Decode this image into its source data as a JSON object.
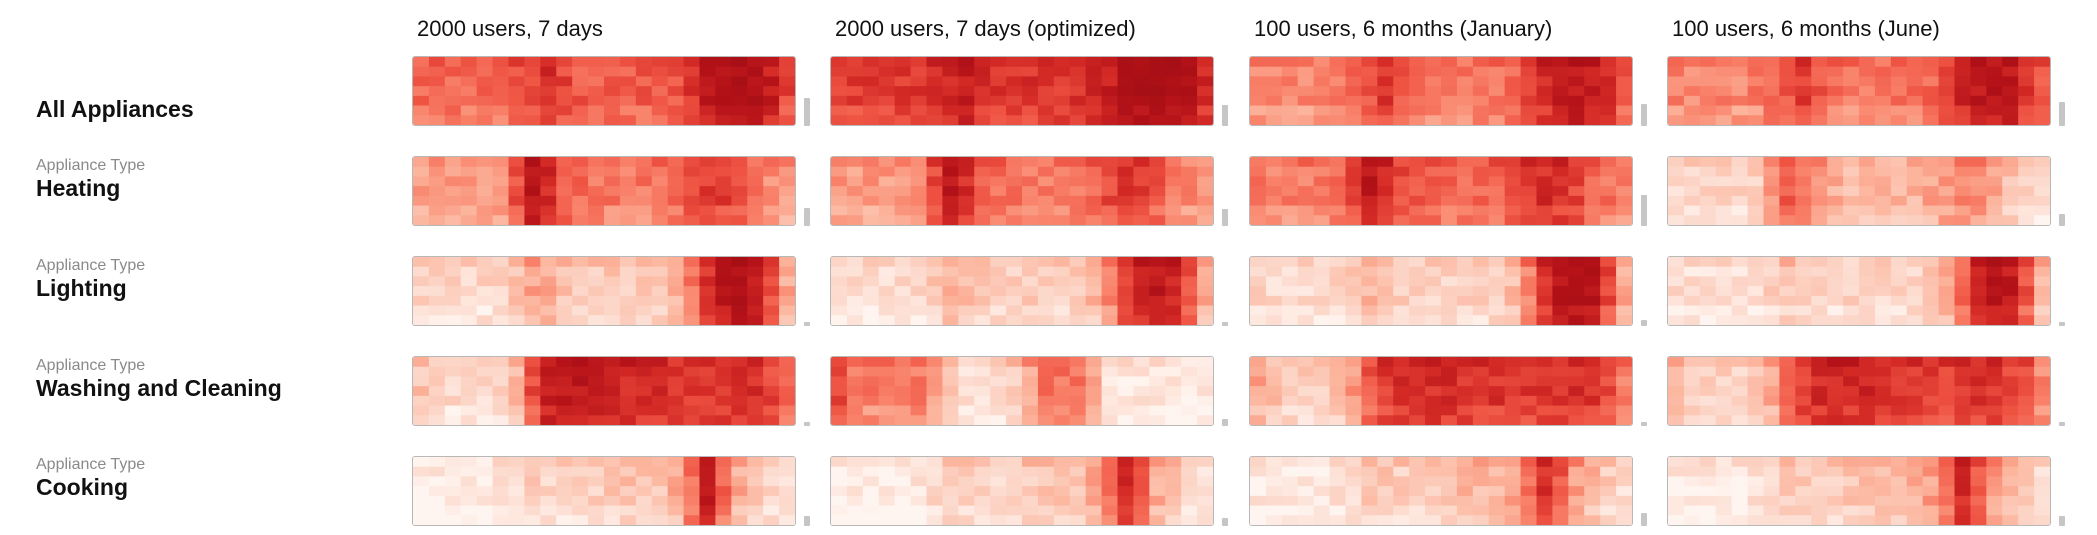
{
  "chart_data": {
    "type": "heatmap",
    "columns": [
      "2000 users, 7 days",
      "2000 users, 7 days (optimized)",
      "100 users, 6 months (January)",
      "100 users, 6 months (June)"
    ],
    "rows": [
      {
        "subtitle": "",
        "name": "All Appliances"
      },
      {
        "subtitle": "Appliance Type",
        "name": "Heating"
      },
      {
        "subtitle": "Appliance Type",
        "name": "Lighting"
      },
      {
        "subtitle": "Appliance Type",
        "name": "Washing and Cleaning"
      },
      {
        "subtitle": "Appliance Type",
        "name": "Cooking"
      }
    ],
    "grid": {
      "x_bins": 24,
      "y_bins": 7
    },
    "color_scale": {
      "low": "#fff5f0",
      "high": "#a50f15"
    },
    "intensity_by_x": [
      [
        [
          0.52,
          0.52,
          0.52,
          0.52,
          0.52,
          0.52,
          0.58,
          0.62,
          0.72,
          0.62,
          0.56,
          0.55,
          0.55,
          0.55,
          0.55,
          0.56,
          0.58,
          0.66,
          0.8,
          0.86,
          0.88,
          0.86,
          0.78,
          0.62
        ],
        [
          0.66,
          0.66,
          0.66,
          0.66,
          0.66,
          0.66,
          0.7,
          0.72,
          0.8,
          0.72,
          0.68,
          0.68,
          0.68,
          0.68,
          0.68,
          0.7,
          0.72,
          0.78,
          0.88,
          0.92,
          0.94,
          0.92,
          0.86,
          0.74
        ],
        [
          0.42,
          0.42,
          0.42,
          0.42,
          0.42,
          0.44,
          0.5,
          0.56,
          0.66,
          0.56,
          0.48,
          0.46,
          0.46,
          0.46,
          0.46,
          0.48,
          0.52,
          0.6,
          0.74,
          0.8,
          0.82,
          0.8,
          0.7,
          0.56
        ],
        [
          0.44,
          0.42,
          0.42,
          0.42,
          0.42,
          0.44,
          0.5,
          0.56,
          0.66,
          0.56,
          0.48,
          0.46,
          0.46,
          0.46,
          0.46,
          0.48,
          0.52,
          0.6,
          0.74,
          0.8,
          0.82,
          0.8,
          0.7,
          0.56
        ]
      ],
      [
        [
          0.36,
          0.36,
          0.36,
          0.36,
          0.36,
          0.4,
          0.6,
          0.82,
          0.72,
          0.56,
          0.5,
          0.48,
          0.46,
          0.46,
          0.46,
          0.48,
          0.52,
          0.6,
          0.66,
          0.64,
          0.56,
          0.46,
          0.4,
          0.36
        ],
        [
          0.36,
          0.36,
          0.36,
          0.36,
          0.36,
          0.4,
          0.6,
          0.82,
          0.72,
          0.56,
          0.5,
          0.48,
          0.46,
          0.46,
          0.46,
          0.48,
          0.52,
          0.6,
          0.66,
          0.64,
          0.56,
          0.46,
          0.4,
          0.36
        ],
        [
          0.44,
          0.44,
          0.44,
          0.44,
          0.44,
          0.48,
          0.62,
          0.82,
          0.74,
          0.6,
          0.56,
          0.54,
          0.52,
          0.52,
          0.52,
          0.54,
          0.58,
          0.66,
          0.72,
          0.7,
          0.62,
          0.52,
          0.48,
          0.44
        ],
        [
          0.14,
          0.14,
          0.14,
          0.14,
          0.14,
          0.18,
          0.34,
          0.56,
          0.48,
          0.36,
          0.3,
          0.26,
          0.26,
          0.26,
          0.26,
          0.28,
          0.32,
          0.38,
          0.44,
          0.42,
          0.34,
          0.24,
          0.18,
          0.14
        ]
      ],
      [
        [
          0.16,
          0.14,
          0.14,
          0.14,
          0.14,
          0.16,
          0.24,
          0.34,
          0.3,
          0.22,
          0.2,
          0.2,
          0.2,
          0.2,
          0.2,
          0.22,
          0.28,
          0.48,
          0.68,
          0.84,
          0.88,
          0.82,
          0.6,
          0.32
        ],
        [
          0.14,
          0.12,
          0.12,
          0.12,
          0.12,
          0.14,
          0.2,
          0.3,
          0.26,
          0.2,
          0.18,
          0.18,
          0.18,
          0.18,
          0.18,
          0.2,
          0.26,
          0.44,
          0.62,
          0.74,
          0.8,
          0.76,
          0.58,
          0.3
        ],
        [
          0.14,
          0.12,
          0.12,
          0.12,
          0.12,
          0.14,
          0.2,
          0.28,
          0.24,
          0.18,
          0.16,
          0.16,
          0.16,
          0.16,
          0.16,
          0.18,
          0.24,
          0.44,
          0.7,
          0.86,
          0.9,
          0.86,
          0.62,
          0.32
        ],
        [
          0.12,
          0.1,
          0.1,
          0.1,
          0.1,
          0.12,
          0.16,
          0.22,
          0.2,
          0.16,
          0.14,
          0.14,
          0.14,
          0.14,
          0.14,
          0.16,
          0.2,
          0.3,
          0.5,
          0.76,
          0.86,
          0.8,
          0.56,
          0.28
        ]
      ],
      [
        [
          0.22,
          0.14,
          0.12,
          0.12,
          0.12,
          0.14,
          0.28,
          0.6,
          0.8,
          0.82,
          0.8,
          0.78,
          0.76,
          0.74,
          0.72,
          0.7,
          0.68,
          0.66,
          0.68,
          0.7,
          0.72,
          0.7,
          0.62,
          0.48
        ],
        [
          0.6,
          0.46,
          0.44,
          0.44,
          0.42,
          0.44,
          0.38,
          0.2,
          0.1,
          0.1,
          0.12,
          0.2,
          0.34,
          0.46,
          0.48,
          0.46,
          0.3,
          0.1,
          0.06,
          0.06,
          0.06,
          0.06,
          0.06,
          0.06
        ],
        [
          0.32,
          0.22,
          0.18,
          0.18,
          0.18,
          0.22,
          0.36,
          0.56,
          0.66,
          0.7,
          0.72,
          0.72,
          0.72,
          0.7,
          0.7,
          0.68,
          0.66,
          0.66,
          0.68,
          0.7,
          0.7,
          0.68,
          0.6,
          0.46
        ],
        [
          0.28,
          0.2,
          0.16,
          0.16,
          0.16,
          0.2,
          0.32,
          0.54,
          0.66,
          0.72,
          0.74,
          0.74,
          0.74,
          0.72,
          0.7,
          0.68,
          0.66,
          0.64,
          0.66,
          0.68,
          0.68,
          0.64,
          0.56,
          0.42
        ]
      ],
      [
        [
          0.04,
          0.04,
          0.04,
          0.04,
          0.04,
          0.06,
          0.12,
          0.18,
          0.16,
          0.14,
          0.14,
          0.16,
          0.2,
          0.22,
          0.2,
          0.22,
          0.3,
          0.5,
          0.76,
          0.52,
          0.3,
          0.22,
          0.16,
          0.1
        ],
        [
          0.04,
          0.04,
          0.04,
          0.04,
          0.04,
          0.06,
          0.12,
          0.18,
          0.16,
          0.14,
          0.14,
          0.16,
          0.2,
          0.22,
          0.2,
          0.22,
          0.3,
          0.5,
          0.76,
          0.52,
          0.3,
          0.22,
          0.16,
          0.1
        ],
        [
          0.06,
          0.06,
          0.06,
          0.06,
          0.06,
          0.08,
          0.14,
          0.2,
          0.2,
          0.18,
          0.18,
          0.2,
          0.24,
          0.28,
          0.26,
          0.28,
          0.34,
          0.5,
          0.72,
          0.56,
          0.36,
          0.26,
          0.18,
          0.12
        ],
        [
          0.06,
          0.06,
          0.06,
          0.06,
          0.06,
          0.08,
          0.14,
          0.2,
          0.2,
          0.18,
          0.18,
          0.2,
          0.24,
          0.28,
          0.26,
          0.28,
          0.34,
          0.5,
          0.72,
          0.56,
          0.36,
          0.26,
          0.18,
          0.12
        ]
      ]
    ],
    "scale_bars": [
      [
        0.5,
        0.38,
        0.4,
        0.42
      ],
      [
        0.32,
        0.3,
        0.56,
        0.22
      ],
      [
        0.06,
        0.06,
        0.1,
        0.06
      ],
      [
        0.06,
        0.12,
        0.08,
        0.08
      ],
      [
        0.18,
        0.14,
        0.24,
        0.18
      ]
    ]
  }
}
